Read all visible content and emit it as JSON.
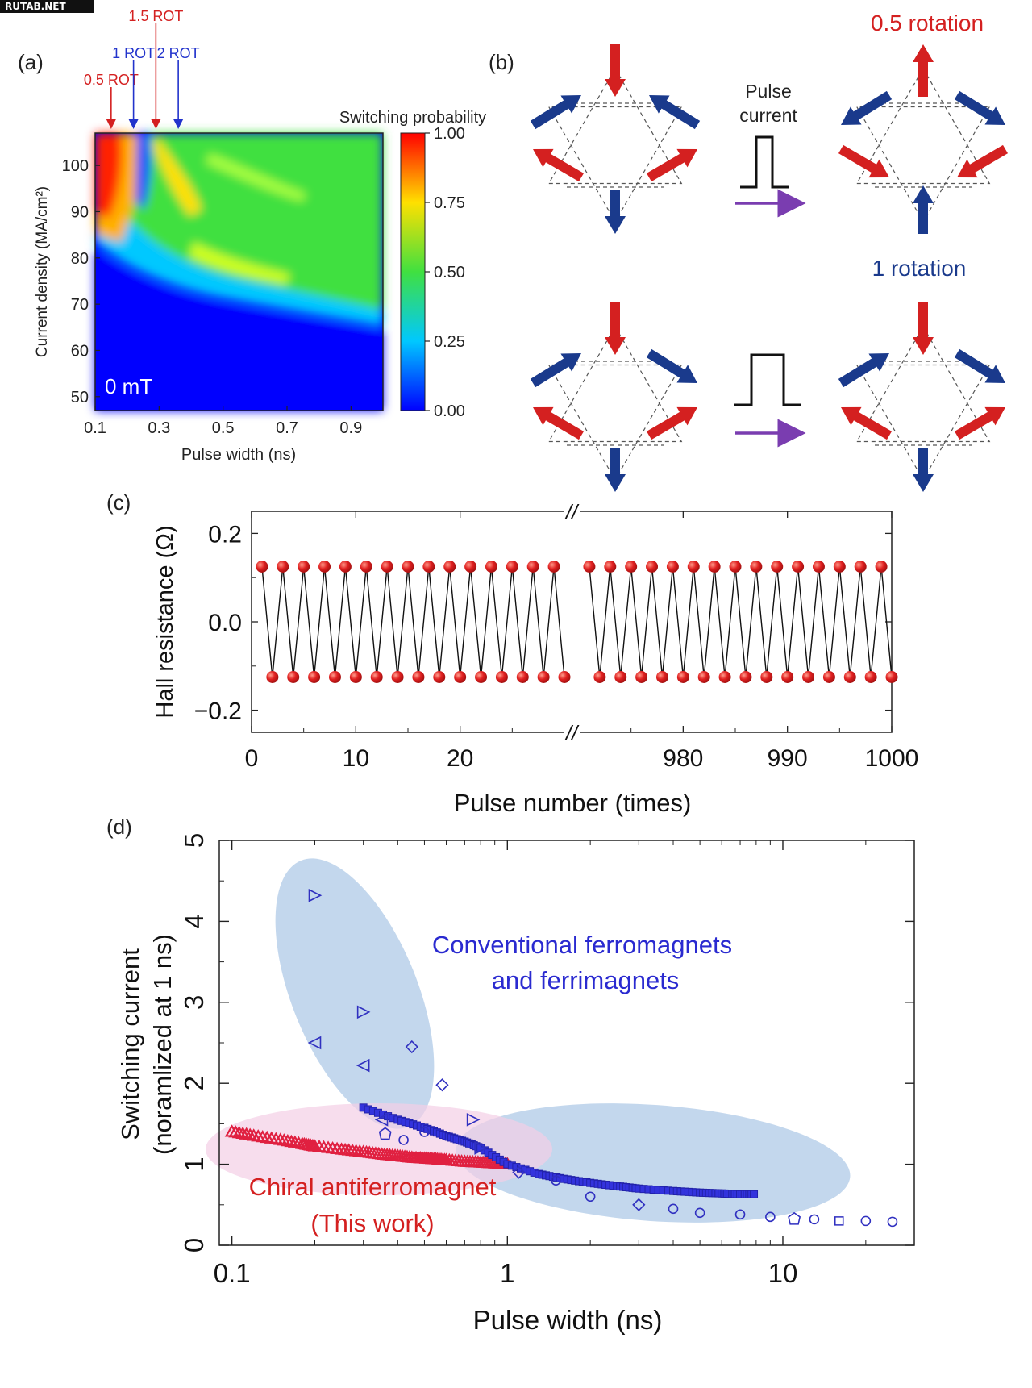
{
  "watermark": "RUTAB.NET",
  "panels": {
    "a_label": "(a)",
    "b_label": "(b)",
    "c_label": "(c)",
    "d_label": "(d)"
  },
  "colors": {
    "red": "#d42020",
    "blue": "#1a3a8c",
    "purple": "#7a3db0",
    "line_blue": "#2a2ad0",
    "fill_blue": "#b8d0ea",
    "fill_pink": "#f3cfe6"
  },
  "panel_b": {
    "pulse_label_line1": "Pulse",
    "pulse_label_line2": "current",
    "top_result": "0.5 rotation",
    "bottom_result": "1 rotation"
  },
  "chart_data": [
    {
      "type": "heatmap",
      "xlabel": "Pulse width (ns)",
      "ylabel": "Current density (MA/cm²)",
      "colorbar_label": "Switching probability",
      "colorbar_ticks": [
        "0.00",
        "0.25",
        "0.50",
        "0.75",
        "1.00"
      ],
      "x_ticks": [
        "0.1",
        "0.3",
        "0.5",
        "0.7",
        "0.9"
      ],
      "y_ticks": [
        "50",
        "60",
        "70",
        "80",
        "90",
        "100"
      ],
      "xlim": [
        0.1,
        1.0
      ],
      "ylim": [
        47,
        107
      ],
      "field_label": "0 mT",
      "markers": [
        {
          "label": "0.5 ROT",
          "x": 0.15,
          "color": "#d42020",
          "tier": 0
        },
        {
          "label": "1 ROT",
          "x": 0.22,
          "color": "#2233cc",
          "tier": 1
        },
        {
          "label": "1.5 ROT",
          "x": 0.29,
          "color": "#d42020",
          "tier": 2
        },
        {
          "label": "2 ROT",
          "x": 0.36,
          "color": "#2233cc",
          "tier": 1
        }
      ]
    },
    {
      "type": "line",
      "xlabel": "Pulse number (times)",
      "ylabel": "Hall resistance (Ω)",
      "y_ticks": [
        "0.2",
        "0.0",
        "−0.2"
      ],
      "x_ticks": [
        "0",
        "10",
        "20",
        "980",
        "990",
        "1000"
      ],
      "ylim": [
        -0.25,
        0.25
      ],
      "segments": [
        {
          "x_start": 0,
          "x_end": 30
        },
        {
          "x_start": 970,
          "x_end": 1000
        }
      ],
      "high_value": 0.125,
      "low_value": -0.125,
      "odd_pulses": "high",
      "even_pulses": "low",
      "x_break": "//"
    },
    {
      "type": "scatter",
      "xlabel": "Pulse width (ns)",
      "ylabel_line1": "Switching current",
      "ylabel_line2": "(noramlized at 1 ns)",
      "x_scale": "log",
      "xlim": [
        0.09,
        30
      ],
      "ylim": [
        0,
        5
      ],
      "x_ticks": [
        "0.1",
        "1",
        "10"
      ],
      "y_ticks": [
        "0",
        "1",
        "2",
        "3",
        "4",
        "5"
      ],
      "annotation_blue_1": "Conventional ferromagnets",
      "annotation_blue_2": "and ferrimagnets",
      "annotation_red_1": "Chiral antiferromagnet",
      "annotation_red_2": "(This work)",
      "series": [
        {
          "group": "chiral antiferromagnet (red)",
          "marker": "triangle",
          "x": [
            0.1,
            0.12,
            0.15,
            0.18,
            0.2,
            0.25,
            0.3,
            0.35,
            0.4,
            0.45,
            0.5,
            0.55,
            0.6,
            0.7,
            0.8,
            0.9,
            1.0
          ],
          "y": [
            1.4,
            1.35,
            1.3,
            1.25,
            1.22,
            1.18,
            1.15,
            1.12,
            1.1,
            1.08,
            1.07,
            1.06,
            1.05,
            1.03,
            1.02,
            1.01,
            1.0
          ]
        },
        {
          "group": "ferro/ferri magnets (blue, line)",
          "marker": "square",
          "x": [
            0.3,
            0.4,
            0.5,
            0.6,
            0.7,
            0.8,
            1.0,
            1.3,
            1.6,
            2.0,
            2.5,
            3.0,
            4.0,
            5.0,
            6.0,
            7.0,
            8.0
          ],
          "y": [
            1.7,
            1.55,
            1.45,
            1.35,
            1.28,
            1.2,
            1.0,
            0.88,
            0.82,
            0.77,
            0.73,
            0.7,
            0.67,
            0.65,
            0.64,
            0.63,
            0.63
          ]
        },
        {
          "group": "ferro/ferri magnets (open markers)",
          "marker": "mixed",
          "x": [
            0.2,
            0.2,
            0.3,
            0.3,
            0.35,
            0.45,
            0.58,
            0.75,
            0.8,
            0.36,
            0.42,
            0.5,
            1.1,
            1.5,
            2.0,
            3.0,
            4.0,
            5.0,
            7.0,
            9.0,
            11.0,
            13.0,
            16.0,
            20.0,
            25.0
          ],
          "y": [
            4.32,
            2.5,
            2.88,
            2.22,
            1.55,
            2.45,
            1.98,
            1.55,
            1.2,
            1.38,
            1.3,
            1.4,
            0.9,
            0.8,
            0.6,
            0.5,
            0.45,
            0.4,
            0.38,
            0.35,
            0.33,
            0.32,
            0.3,
            0.3,
            0.29
          ]
        }
      ]
    }
  ]
}
